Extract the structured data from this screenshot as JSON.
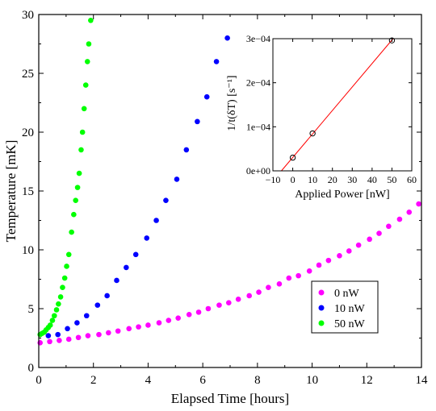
{
  "chart_data": [
    {
      "type": "scatter",
      "xlabel": "Elapsed Time [hours]",
      "ylabel": "Temperature [mK]",
      "xlim": [
        0,
        14
      ],
      "ylim": [
        0,
        30
      ],
      "xticks": [
        0,
        2,
        4,
        6,
        8,
        10,
        12,
        14
      ],
      "yticks": [
        0,
        5,
        10,
        15,
        20,
        25,
        30
      ],
      "grid": false,
      "legend_position": "bottom-right",
      "series": [
        {
          "name": "0 nW",
          "color": "#ff00ff",
          "points": [
            [
              0.05,
              2.1
            ],
            [
              0.4,
              2.2
            ],
            [
              0.75,
              2.3
            ],
            [
              1.1,
              2.4
            ],
            [
              1.45,
              2.55
            ],
            [
              1.8,
              2.7
            ],
            [
              2.2,
              2.8
            ],
            [
              2.55,
              2.95
            ],
            [
              2.9,
              3.1
            ],
            [
              3.3,
              3.3
            ],
            [
              3.65,
              3.45
            ],
            [
              4.0,
              3.6
            ],
            [
              4.4,
              3.8
            ],
            [
              4.75,
              4.0
            ],
            [
              5.1,
              4.2
            ],
            [
              5.5,
              4.5
            ],
            [
              5.85,
              4.7
            ],
            [
              6.2,
              5.0
            ],
            [
              6.6,
              5.3
            ],
            [
              6.95,
              5.5
            ],
            [
              7.3,
              5.8
            ],
            [
              7.7,
              6.1
            ],
            [
              8.05,
              6.4
            ],
            [
              8.4,
              6.8
            ],
            [
              8.8,
              7.1
            ],
            [
              9.15,
              7.6
            ],
            [
              9.5,
              7.8
            ],
            [
              9.9,
              8.2
            ],
            [
              10.25,
              8.7
            ],
            [
              10.6,
              9.1
            ],
            [
              11.0,
              9.5
            ],
            [
              11.35,
              9.9
            ],
            [
              11.7,
              10.4
            ],
            [
              12.1,
              10.9
            ],
            [
              12.45,
              11.4
            ],
            [
              12.8,
              12.0
            ],
            [
              13.2,
              12.6
            ],
            [
              13.55,
              13.2
            ],
            [
              13.9,
              13.9
            ],
            [
              14.25,
              14.5
            ]
          ]
        },
        {
          "name": "10 nW",
          "color": "#0000ff",
          "points": [
            [
              0.35,
              2.7
            ],
            [
              0.7,
              2.8
            ],
            [
              1.05,
              3.3
            ],
            [
              1.4,
              3.8
            ],
            [
              1.75,
              4.4
            ],
            [
              2.15,
              5.3
            ],
            [
              2.5,
              6.1
            ],
            [
              2.85,
              7.4
            ],
            [
              3.2,
              8.5
            ],
            [
              3.55,
              9.6
            ],
            [
              3.95,
              11.0
            ],
            [
              4.3,
              12.5
            ],
            [
              4.65,
              14.2
            ],
            [
              5.05,
              16.0
            ],
            [
              5.4,
              18.5
            ],
            [
              5.8,
              20.9
            ],
            [
              6.15,
              23.0
            ],
            [
              6.5,
              26.0
            ],
            [
              6.9,
              28.0
            ]
          ]
        },
        {
          "name": "50 nW",
          "color": "#00ff00",
          "points": [
            [
              0.05,
              2.8
            ],
            [
              0.12,
              2.9
            ],
            [
              0.2,
              3.0
            ],
            [
              0.27,
              3.2
            ],
            [
              0.35,
              3.4
            ],
            [
              0.42,
              3.6
            ],
            [
              0.5,
              4.0
            ],
            [
              0.57,
              4.4
            ],
            [
              0.65,
              4.9
            ],
            [
              0.72,
              5.4
            ],
            [
              0.8,
              6.0
            ],
            [
              0.87,
              6.8
            ],
            [
              0.95,
              7.6
            ],
            [
              1.02,
              8.6
            ],
            [
              1.1,
              9.6
            ],
            [
              1.2,
              11.5
            ],
            [
              1.28,
              13.0
            ],
            [
              1.35,
              14.2
            ],
            [
              1.42,
              15.3
            ],
            [
              1.48,
              16.5
            ],
            [
              1.55,
              18.5
            ],
            [
              1.6,
              20.0
            ],
            [
              1.66,
              22.0
            ],
            [
              1.72,
              24.0
            ],
            [
              1.78,
              26.0
            ],
            [
              1.83,
              27.5
            ],
            [
              1.9,
              29.5
            ]
          ]
        }
      ]
    },
    {
      "type": "scatter",
      "xlabel": "Applied Power [nW]",
      "ylabel": "1/t(δT) [s⁻¹]",
      "xlim": [
        -10,
        60
      ],
      "ylim": [
        0,
        0.0003
      ],
      "xticks": [
        -10,
        0,
        10,
        20,
        30,
        40,
        50,
        60
      ],
      "xtick_labels": [
        "−10",
        "0",
        "10",
        "20",
        "30",
        "40",
        "50",
        "60"
      ],
      "yticks": [
        0,
        0.0001,
        0.0002,
        0.0003
      ],
      "ytick_labels": [
        "0e+00",
        "1e−04",
        "2e−04",
        "3e−04"
      ],
      "grid": false,
      "series": [
        {
          "marker": "open-circle",
          "color": "#000000",
          "points": [
            [
              0,
              3e-05
            ],
            [
              10,
              8.5e-05
            ],
            [
              50,
              0.000296
            ]
          ]
        }
      ],
      "fit_line": {
        "color": "#ff0000",
        "slope": 5.33e-06,
        "intercept": 3.05e-05
      }
    }
  ]
}
